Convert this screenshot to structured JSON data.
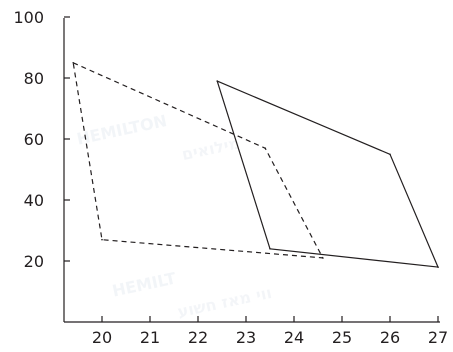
{
  "chart_data": {
    "type": "line",
    "title": "",
    "xlabel": "",
    "ylabel": "",
    "x_ticks": [
      20,
      21,
      22,
      23,
      24,
      25,
      26,
      27
    ],
    "y_ticks": [
      20,
      40,
      60,
      80,
      100
    ],
    "xlim": [
      18.8,
      27
    ],
    "ylim": [
      0,
      100
    ],
    "grid": false,
    "legend": "none",
    "series": [
      {
        "style": "dashed",
        "color": "#231f20",
        "points": [
          {
            "x": 19.4,
            "y": 85
          },
          {
            "x": 23.4,
            "y": 57
          },
          {
            "x": 24.6,
            "y": 21
          },
          {
            "x": 20.0,
            "y": 27
          },
          {
            "x": 19.4,
            "y": 85
          }
        ]
      },
      {
        "style": "solid",
        "color": "#231f20",
        "points": [
          {
            "x": 22.4,
            "y": 79
          },
          {
            "x": 26.0,
            "y": 55
          },
          {
            "x": 27.0,
            "y": 18
          },
          {
            "x": 23.5,
            "y": 24
          },
          {
            "x": 22.4,
            "y": 79
          }
        ]
      }
    ]
  },
  "watermark": {
    "brand": "HEMILTON",
    "brand_repeat": "HEMILT",
    "hebrew_line_1": "מילואים",
    "hebrew_line_2": "ווי מאז חשוע"
  },
  "colors": {
    "ink": "#231f20",
    "watermark": "#e9edf3",
    "background": "#ffffff"
  }
}
